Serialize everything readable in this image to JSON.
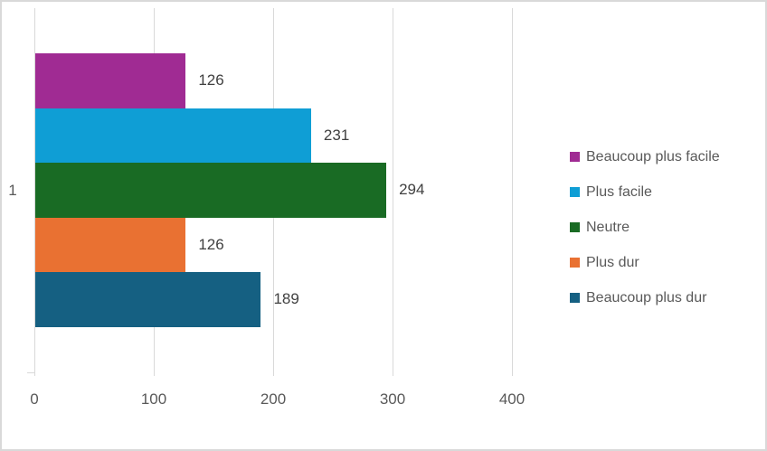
{
  "chart_data": {
    "type": "bar",
    "orientation": "horizontal",
    "title": "",
    "category_labels": [
      "1"
    ],
    "series": [
      {
        "name": "Beaucoup plus facile",
        "value": 126,
        "color": "#A02B93"
      },
      {
        "name": "Plus facile",
        "value": 231,
        "color": "#0F9ED5"
      },
      {
        "name": "Neutre",
        "value": 294,
        "color": "#196B24"
      },
      {
        "name": "Plus dur",
        "value": 126,
        "color": "#E97132"
      },
      {
        "name": "Beaucoup plus dur",
        "value": 189,
        "color": "#156082"
      }
    ],
    "x_axis": {
      "min": 0,
      "max": 400,
      "ticks": [
        0,
        100,
        200,
        300,
        400
      ]
    },
    "data_labels": true,
    "gridlines": true,
    "legend_position": "right",
    "colors": {
      "gridline": "#D9D9D9",
      "chart_border": "#D9D9D9",
      "data_label_text": "#404040",
      "axis_text": "#595959",
      "legend_text": "#595959",
      "background": "#ffffff"
    }
  }
}
